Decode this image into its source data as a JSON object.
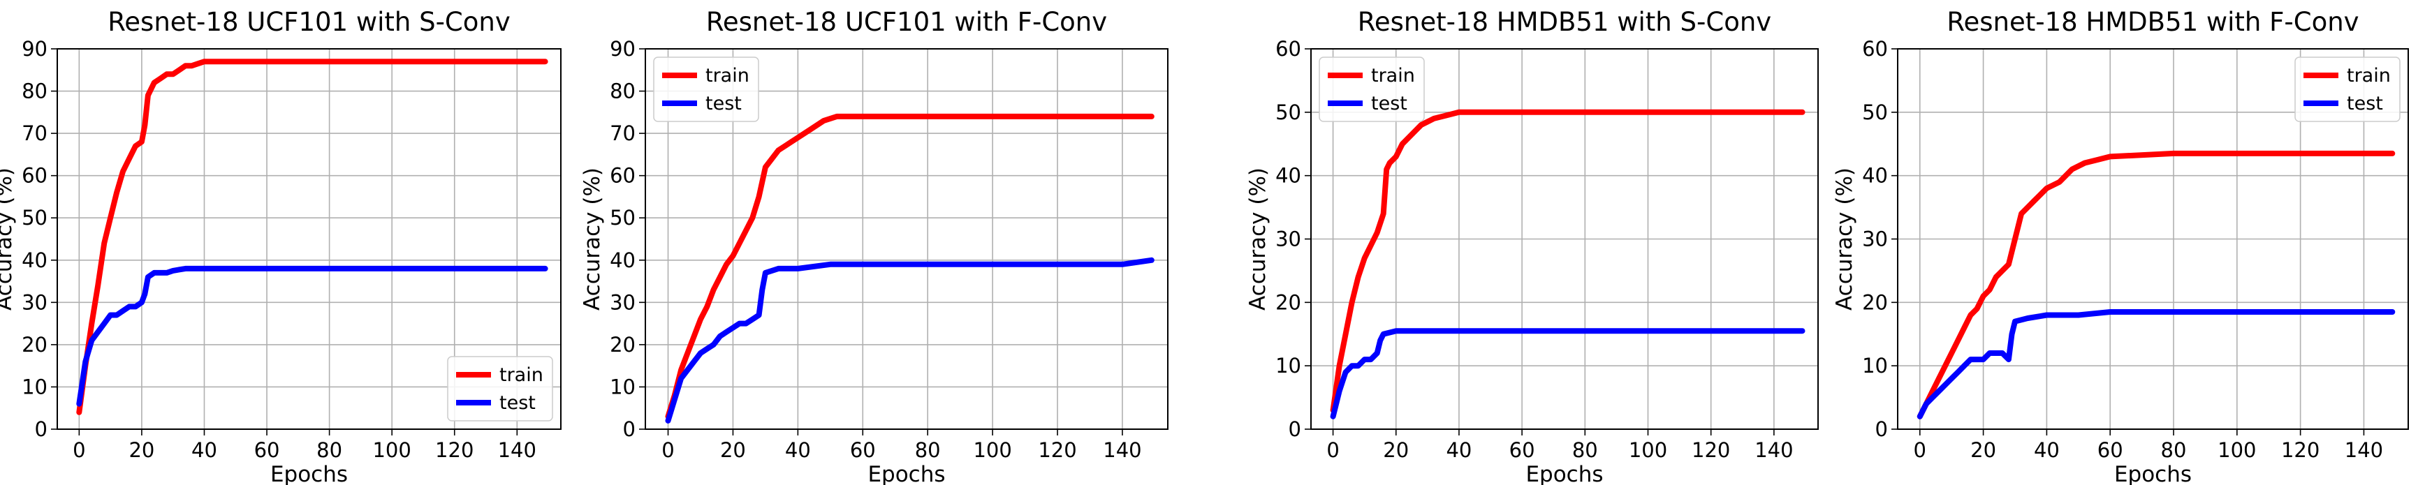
{
  "chart_data": [
    {
      "type": "line",
      "title": "Resnet-18 UCF101 with S-Conv",
      "xlabel": "Epochs",
      "ylabel": "Accuracy (%)",
      "xlim": [
        -7,
        154
      ],
      "ylim": [
        0,
        90
      ],
      "xticks": [
        "0",
        "20",
        "40",
        "60",
        "80",
        "100",
        "120",
        "140"
      ],
      "yticks": [
        "0",
        "10",
        "20",
        "30",
        "40",
        "50",
        "60",
        "70",
        "80",
        "90"
      ],
      "grid": true,
      "legend_position": "lower-right",
      "series": [
        {
          "name": "train",
          "color": "#ff0000",
          "points": [
            [
              0,
              4
            ],
            [
              2,
              15
            ],
            [
              4,
              25
            ],
            [
              6,
              34
            ],
            [
              8,
              44
            ],
            [
              10,
              50
            ],
            [
              12,
              56
            ],
            [
              14,
              61
            ],
            [
              16,
              64
            ],
            [
              18,
              67
            ],
            [
              20,
              68
            ],
            [
              21,
              72
            ],
            [
              22,
              79
            ],
            [
              24,
              82
            ],
            [
              26,
              83
            ],
            [
              28,
              84
            ],
            [
              30,
              84
            ],
            [
              32,
              85
            ],
            [
              34,
              86
            ],
            [
              36,
              86
            ],
            [
              38,
              86.5
            ],
            [
              40,
              87
            ],
            [
              50,
              87
            ],
            [
              60,
              87
            ],
            [
              70,
              87
            ],
            [
              80,
              87
            ],
            [
              90,
              87
            ],
            [
              100,
              87
            ],
            [
              110,
              87
            ],
            [
              120,
              87
            ],
            [
              130,
              87
            ],
            [
              140,
              87
            ],
            [
              149,
              87
            ]
          ]
        },
        {
          "name": "test",
          "color": "#0000ff",
          "points": [
            [
              0,
              6
            ],
            [
              2,
              16
            ],
            [
              4,
              21
            ],
            [
              6,
              23
            ],
            [
              8,
              25
            ],
            [
              10,
              27
            ],
            [
              12,
              27
            ],
            [
              14,
              28
            ],
            [
              16,
              29
            ],
            [
              18,
              29
            ],
            [
              20,
              30
            ],
            [
              21,
              32
            ],
            [
              22,
              36
            ],
            [
              24,
              37
            ],
            [
              26,
              37
            ],
            [
              28,
              37
            ],
            [
              30,
              37.5
            ],
            [
              34,
              38
            ],
            [
              40,
              38
            ],
            [
              60,
              38
            ],
            [
              80,
              38
            ],
            [
              100,
              38
            ],
            [
              120,
              38
            ],
            [
              140,
              38
            ],
            [
              149,
              38
            ]
          ]
        }
      ]
    },
    {
      "type": "line",
      "title": "Resnet-18 UCF101 with F-Conv",
      "xlabel": "Epochs",
      "ylabel": "Accuracy (%)",
      "xlim": [
        -7,
        154
      ],
      "ylim": [
        0,
        90
      ],
      "xticks": [
        "0",
        "20",
        "40",
        "60",
        "80",
        "100",
        "120",
        "140"
      ],
      "yticks": [
        "0",
        "10",
        "20",
        "30",
        "40",
        "50",
        "60",
        "70",
        "80",
        "90"
      ],
      "grid": true,
      "legend_position": "upper-left",
      "series": [
        {
          "name": "train",
          "color": "#ff0000",
          "points": [
            [
              0,
              3
            ],
            [
              2,
              8
            ],
            [
              4,
              14
            ],
            [
              6,
              18
            ],
            [
              8,
              22
            ],
            [
              10,
              26
            ],
            [
              12,
              29
            ],
            [
              14,
              33
            ],
            [
              16,
              36
            ],
            [
              18,
              39
            ],
            [
              20,
              41
            ],
            [
              22,
              44
            ],
            [
              24,
              47
            ],
            [
              26,
              50
            ],
            [
              28,
              55
            ],
            [
              30,
              62
            ],
            [
              32,
              64
            ],
            [
              34,
              66
            ],
            [
              36,
              67
            ],
            [
              38,
              68
            ],
            [
              40,
              69
            ],
            [
              44,
              71
            ],
            [
              48,
              73
            ],
            [
              52,
              74
            ],
            [
              60,
              74
            ],
            [
              80,
              74
            ],
            [
              100,
              74
            ],
            [
              120,
              74
            ],
            [
              140,
              74
            ],
            [
              149,
              74
            ]
          ]
        },
        {
          "name": "test",
          "color": "#0000ff",
          "points": [
            [
              0,
              2
            ],
            [
              2,
              7
            ],
            [
              4,
              12
            ],
            [
              6,
              14
            ],
            [
              8,
              16
            ],
            [
              10,
              18
            ],
            [
              12,
              19
            ],
            [
              14,
              20
            ],
            [
              16,
              22
            ],
            [
              18,
              23
            ],
            [
              20,
              24
            ],
            [
              22,
              25
            ],
            [
              24,
              25
            ],
            [
              26,
              26
            ],
            [
              28,
              27
            ],
            [
              29,
              33
            ],
            [
              30,
              37
            ],
            [
              34,
              38
            ],
            [
              40,
              38
            ],
            [
              50,
              39
            ],
            [
              60,
              39
            ],
            [
              80,
              39
            ],
            [
              100,
              39
            ],
            [
              120,
              39
            ],
            [
              140,
              39
            ],
            [
              149,
              40
            ]
          ]
        }
      ]
    },
    {
      "type": "line",
      "title": "Resnet-18 HMDB51 with S-Conv",
      "xlabel": "Epochs",
      "ylabel": "Accuracy (%)",
      "xlim": [
        -7,
        154
      ],
      "ylim": [
        0,
        60
      ],
      "xticks": [
        "0",
        "20",
        "40",
        "60",
        "80",
        "100",
        "120",
        "140"
      ],
      "yticks": [
        "0",
        "10",
        "20",
        "30",
        "40",
        "50",
        "60"
      ],
      "grid": true,
      "legend_position": "upper-left",
      "series": [
        {
          "name": "train",
          "color": "#ff0000",
          "points": [
            [
              0,
              3
            ],
            [
              2,
              10
            ],
            [
              4,
              15
            ],
            [
              6,
              20
            ],
            [
              8,
              24
            ],
            [
              10,
              27
            ],
            [
              12,
              29
            ],
            [
              14,
              31
            ],
            [
              16,
              34
            ],
            [
              17,
              41
            ],
            [
              18,
              42
            ],
            [
              20,
              43
            ],
            [
              22,
              45
            ],
            [
              24,
              46
            ],
            [
              26,
              47
            ],
            [
              28,
              48
            ],
            [
              30,
              48.5
            ],
            [
              32,
              49
            ],
            [
              36,
              49.5
            ],
            [
              40,
              50
            ],
            [
              60,
              50
            ],
            [
              80,
              50
            ],
            [
              100,
              50
            ],
            [
              120,
              50
            ],
            [
              140,
              50
            ],
            [
              149,
              50
            ]
          ]
        },
        {
          "name": "test",
          "color": "#0000ff",
          "points": [
            [
              0,
              2
            ],
            [
              2,
              6
            ],
            [
              4,
              9
            ],
            [
              6,
              10
            ],
            [
              8,
              10
            ],
            [
              10,
              11
            ],
            [
              12,
              11
            ],
            [
              14,
              12
            ],
            [
              15,
              14
            ],
            [
              16,
              15
            ],
            [
              20,
              15.5
            ],
            [
              30,
              15.5
            ],
            [
              40,
              15.5
            ],
            [
              60,
              15.5
            ],
            [
              80,
              15.5
            ],
            [
              100,
              15.5
            ],
            [
              120,
              15.5
            ],
            [
              140,
              15.5
            ],
            [
              149,
              15.5
            ]
          ]
        }
      ]
    },
    {
      "type": "line",
      "title": "Resnet-18 HMDB51 with F-Conv",
      "xlabel": "Epochs",
      "ylabel": "Accuracy (%)",
      "xlim": [
        -7,
        154
      ],
      "ylim": [
        0,
        60
      ],
      "xticks": [
        "0",
        "20",
        "40",
        "60",
        "80",
        "100",
        "120",
        "140"
      ],
      "yticks": [
        "0",
        "10",
        "20",
        "30",
        "40",
        "50",
        "60"
      ],
      "grid": true,
      "legend_position": "upper-right",
      "series": [
        {
          "name": "train",
          "color": "#ff0000",
          "points": [
            [
              0,
              2
            ],
            [
              2,
              4
            ],
            [
              4,
              6
            ],
            [
              6,
              8
            ],
            [
              8,
              10
            ],
            [
              10,
              12
            ],
            [
              12,
              14
            ],
            [
              14,
              16
            ],
            [
              16,
              18
            ],
            [
              18,
              19
            ],
            [
              20,
              21
            ],
            [
              22,
              22
            ],
            [
              24,
              24
            ],
            [
              26,
              25
            ],
            [
              28,
              26
            ],
            [
              30,
              30
            ],
            [
              32,
              34
            ],
            [
              34,
              35
            ],
            [
              36,
              36
            ],
            [
              38,
              37
            ],
            [
              40,
              38
            ],
            [
              44,
              39
            ],
            [
              48,
              41
            ],
            [
              52,
              42
            ],
            [
              56,
              42.5
            ],
            [
              60,
              43
            ],
            [
              80,
              43.5
            ],
            [
              100,
              43.5
            ],
            [
              120,
              43.5
            ],
            [
              140,
              43.5
            ],
            [
              149,
              43.5
            ]
          ]
        },
        {
          "name": "test",
          "color": "#0000ff",
          "points": [
            [
              0,
              2
            ],
            [
              2,
              4
            ],
            [
              4,
              5
            ],
            [
              6,
              6
            ],
            [
              8,
              7
            ],
            [
              10,
              8
            ],
            [
              12,
              9
            ],
            [
              14,
              10
            ],
            [
              16,
              11
            ],
            [
              18,
              11
            ],
            [
              20,
              11
            ],
            [
              22,
              12
            ],
            [
              24,
              12
            ],
            [
              26,
              12
            ],
            [
              28,
              11
            ],
            [
              29,
              15
            ],
            [
              30,
              17
            ],
            [
              34,
              17.5
            ],
            [
              40,
              18
            ],
            [
              50,
              18
            ],
            [
              60,
              18.5
            ],
            [
              80,
              18.5
            ],
            [
              100,
              18.5
            ],
            [
              120,
              18.5
            ],
            [
              140,
              18.5
            ],
            [
              149,
              18.5
            ]
          ]
        }
      ]
    }
  ]
}
